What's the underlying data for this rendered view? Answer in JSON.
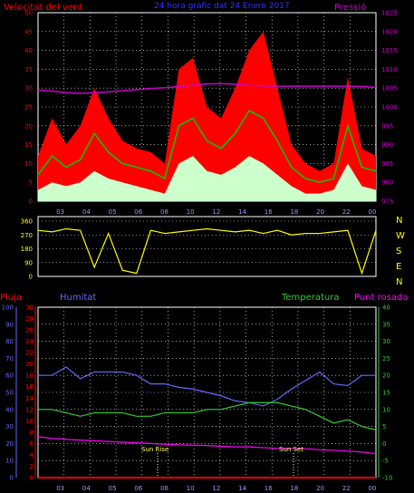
{
  "colors": {
    "background": "#000000",
    "wind_gust": "#ff0000",
    "wind_avg": "#00cc00",
    "wind_min": "#ccffcc",
    "pressure": "#cc00cc",
    "direction": "#ffff00",
    "rain": "#ff0000",
    "humidity": "#6666ff",
    "temperature": "#33cc33",
    "dewpoint": "#ff00ff",
    "grid": "#ffffff",
    "axis_text": "#cccccc",
    "time_text": "#9999ff"
  },
  "header": {
    "left": "Velocitat del vent",
    "center": "24 hora gràfic dat 24 Enero 2017",
    "right": "Pressió"
  },
  "direction_labels": [
    "N",
    "W",
    "S",
    "E",
    "N"
  ],
  "lower_header": {
    "rain": "Pluja",
    "humidity": "Humitat",
    "temperature": "Temperatura",
    "dewpoint": "Punt rosada"
  },
  "annotations": {
    "sunrise": "Sun Rise",
    "sunset": "Sun Set"
  },
  "chart_data": [
    {
      "type": "area",
      "title": "24 hora gràfic dat 24 Enero 2017",
      "x_ticks": [
        "03",
        "04",
        "05",
        "06",
        "08",
        "10",
        "12",
        "14",
        "16",
        "18",
        "20",
        "22",
        "00"
      ],
      "y_left_ticks": [
        0,
        5,
        10,
        15,
        20,
        25,
        30,
        35,
        40,
        45,
        50
      ],
      "y_right_ticks": [
        975,
        980,
        985,
        990,
        995,
        1000,
        1005,
        1010,
        1015,
        1020,
        1025
      ],
      "ylim_left": [
        0,
        50
      ],
      "ylim_right": [
        975,
        1025
      ],
      "x": [
        0,
        1,
        2,
        3,
        4,
        5,
        6,
        7,
        8,
        9,
        10,
        11,
        12,
        13,
        14,
        15,
        16,
        17,
        18,
        19,
        20,
        21,
        22,
        23,
        24
      ],
      "series": [
        {
          "name": "Velocitat del vent",
          "values": [
            12,
            22,
            15,
            20,
            30,
            22,
            16,
            14,
            13,
            10,
            35,
            38,
            25,
            22,
            30,
            40,
            45,
            30,
            15,
            10,
            8,
            10,
            33,
            14,
            12
          ]
        },
        {
          "name": "wind_avg",
          "values": [
            7,
            12,
            9,
            11,
            18,
            13,
            10,
            9,
            8,
            6,
            20,
            22,
            16,
            14,
            18,
            24,
            22,
            16,
            9,
            6,
            5,
            6,
            20,
            9,
            8
          ]
        },
        {
          "name": "wind_min",
          "values": [
            3,
            5,
            4,
            5,
            8,
            6,
            5,
            4,
            3,
            2,
            10,
            12,
            8,
            7,
            9,
            12,
            10,
            7,
            4,
            2,
            2,
            3,
            10,
            4,
            3
          ]
        },
        {
          "name": "Pressió",
          "values": [
            1004.5,
            1004.2,
            1003.8,
            1003.6,
            1003.8,
            1004.0,
            1004.3,
            1004.6,
            1004.9,
            1005.1,
            1005.4,
            1005.8,
            1006.1,
            1006.2,
            1006.0,
            1005.7,
            1005.6,
            1005.5,
            1005.5,
            1005.5,
            1005.5,
            1005.5,
            1005.5,
            1005.4,
            1005.2
          ]
        }
      ]
    },
    {
      "type": "line",
      "y_ticks": [
        0,
        90,
        180,
        270,
        360
      ],
      "ylim": [
        0,
        360
      ],
      "x": [
        0,
        1,
        2,
        3,
        4,
        5,
        6,
        7,
        8,
        9,
        10,
        11,
        12,
        13,
        14,
        15,
        16,
        17,
        18,
        19,
        20,
        21,
        22,
        23,
        24
      ],
      "series": [
        {
          "name": "direction",
          "values": [
            300,
            290,
            310,
            300,
            60,
            280,
            40,
            20,
            300,
            280,
            290,
            300,
            310,
            300,
            290,
            300,
            280,
            300,
            270,
            280,
            280,
            290,
            300,
            20,
            300
          ]
        }
      ]
    },
    {
      "type": "line",
      "x_ticks": [
        "03",
        "04",
        "05",
        "06",
        "08",
        "10",
        "12",
        "14",
        "16",
        "18",
        "20",
        "22",
        "00"
      ],
      "y_left_outer_ticks": [
        0,
        10,
        20,
        30,
        40,
        50,
        60,
        70,
        80,
        90,
        100
      ],
      "y_left_inner_ticks": [
        0,
        2,
        4,
        6,
        8,
        10,
        12,
        14,
        16,
        18,
        20,
        22,
        24,
        26,
        28,
        30
      ],
      "y_right_ticks": [
        -10,
        -5,
        0,
        5,
        10,
        15,
        20,
        25,
        30,
        35,
        40
      ],
      "ylim_rain": [
        0,
        30
      ],
      "ylim_humidity": [
        0,
        100
      ],
      "ylim_temperature": [
        -10,
        40
      ],
      "x": [
        0,
        1,
        2,
        3,
        4,
        5,
        6,
        7,
        8,
        9,
        10,
        11,
        12,
        13,
        14,
        15,
        16,
        17,
        18,
        19,
        20,
        21,
        22,
        23,
        24
      ],
      "series": [
        {
          "name": "Pluja",
          "values": [
            0,
            0,
            0,
            0,
            0,
            0,
            0,
            0,
            0,
            0,
            0,
            0,
            0,
            0,
            0,
            0,
            0,
            0,
            0,
            0,
            0,
            0,
            0,
            0,
            0
          ]
        },
        {
          "name": "Humitat",
          "values": [
            60,
            60,
            65,
            58,
            62,
            62,
            62,
            60,
            55,
            55,
            53,
            52,
            50,
            48,
            45,
            44,
            42,
            46,
            52,
            57,
            62,
            55,
            54,
            60,
            60
          ]
        },
        {
          "name": "Temperatura",
          "values": [
            10,
            10,
            9,
            8,
            9,
            9,
            9,
            8,
            8,
            9,
            9,
            9,
            10,
            10,
            11,
            12,
            12,
            12,
            11,
            10,
            8,
            6,
            7,
            5,
            4
          ]
        },
        {
          "name": "Punt rosada",
          "values": [
            2,
            1.5,
            1.2,
            1,
            0.8,
            0.6,
            0.4,
            0.2,
            0,
            -0.2,
            -0.4,
            -0.5,
            -0.6,
            -0.8,
            -1,
            -1,
            -1.2,
            -1.4,
            -1.5,
            -1.5,
            -1.8,
            -2,
            -2.2,
            -2.5,
            -3
          ]
        }
      ]
    }
  ]
}
